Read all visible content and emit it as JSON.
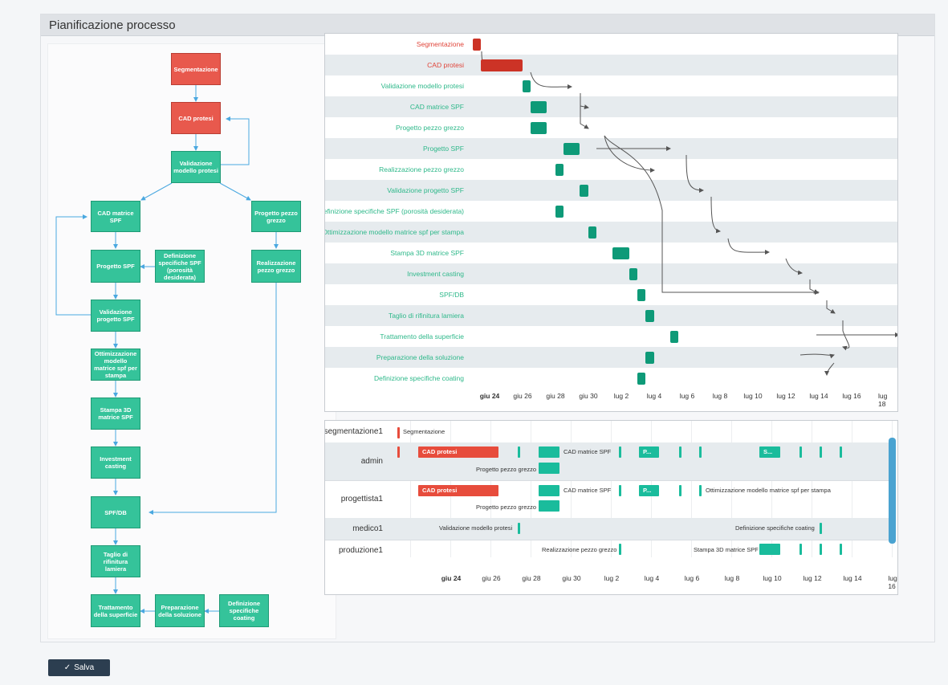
{
  "panel": {
    "title": "Pianificazione processo"
  },
  "flowchart": {
    "nodes": [
      {
        "id": "segmentazione",
        "label": "Segmentazione"
      },
      {
        "id": "cad-protesi",
        "label": "CAD protesi"
      },
      {
        "id": "validazione-modello",
        "label": "Validazione modello protesi"
      },
      {
        "id": "cad-matrice",
        "label": "CAD matrice SPF"
      },
      {
        "id": "progetto-pezzo-grezzo",
        "label": "Progetto pezzo grezzo"
      },
      {
        "id": "progetto-spf",
        "label": "Progetto SPF"
      },
      {
        "id": "definizione-specifiche-spf",
        "label": "Definizione specifiche SPF (porosità desiderata)"
      },
      {
        "id": "realizzazione-pezzo",
        "label": "Realizzazione pezzo grezzo"
      },
      {
        "id": "validazione-progetto",
        "label": "Validazione progetto SPF"
      },
      {
        "id": "ottimizzazione",
        "label": "Ottimizzazione modello matrice spf per stampa"
      },
      {
        "id": "stampa-3d",
        "label": "Stampa 3D matrice SPF"
      },
      {
        "id": "investment-casting",
        "label": "Investment casting"
      },
      {
        "id": "spf-db",
        "label": "SPF/DB"
      },
      {
        "id": "taglio",
        "label": "Taglio di rifinitura lamiera"
      },
      {
        "id": "trattamento",
        "label": "Trattamento della superficie"
      },
      {
        "id": "preparazione",
        "label": "Preparazione della soluzione"
      },
      {
        "id": "definizione-coating",
        "label": "Definizione specifiche coating"
      }
    ]
  },
  "gantt": {
    "tasks": [
      {
        "name": "Segmentazione",
        "start": "2024-06-24",
        "end": "2024-06-25",
        "status": "red"
      },
      {
        "name": "CAD protesi",
        "start": "2024-06-25",
        "end": "2024-06-30",
        "status": "red"
      },
      {
        "name": "Validazione modello protesi",
        "start": "2024-06-30",
        "end": "2024-07-01",
        "status": "green"
      },
      {
        "name": "CAD matrice SPF",
        "start": "2024-07-01",
        "end": "2024-07-03",
        "status": "green"
      },
      {
        "name": "Progetto pezzo grezzo",
        "start": "2024-07-01",
        "end": "2024-07-03",
        "status": "green"
      },
      {
        "name": "Progetto SPF",
        "start": "2024-07-05",
        "end": "2024-07-07",
        "status": "green"
      },
      {
        "name": "Realizzazione pezzo grezzo",
        "start": "2024-07-04",
        "end": "2024-07-05",
        "status": "green"
      },
      {
        "name": "Validazione progetto SPF",
        "start": "2024-07-07",
        "end": "2024-07-08",
        "status": "green"
      },
      {
        "name": "Definizione specifiche SPF (porosità desiderata)",
        "start": "2024-07-04",
        "end": "2024-07-05",
        "status": "green"
      },
      {
        "name": "Ottimizzazione modello matrice spf per stampa",
        "start": "2024-07-08",
        "end": "2024-07-09",
        "status": "green"
      },
      {
        "name": "Stampa 3D matrice SPF",
        "start": "2024-07-11",
        "end": "2024-07-13",
        "status": "green"
      },
      {
        "name": "Investment casting",
        "start": "2024-07-13",
        "end": "2024-07-14",
        "status": "green"
      },
      {
        "name": "SPF/DB",
        "start": "2024-07-14",
        "end": "2024-07-15",
        "status": "green"
      },
      {
        "name": "Taglio di rifinitura lamiera",
        "start": "2024-07-15",
        "end": "2024-07-16",
        "status": "green"
      },
      {
        "name": "Trattamento della superficie",
        "start": "2024-07-18",
        "end": "2024-07-19",
        "status": "green"
      },
      {
        "name": "Preparazione della soluzione",
        "start": "2024-07-15",
        "end": "2024-07-16",
        "status": "green"
      },
      {
        "name": "Definizione specifiche coating",
        "start": "2024-07-14",
        "end": "2024-07-15",
        "status": "green"
      }
    ],
    "ticks": [
      "giu 24",
      "giu 26",
      "giu 28",
      "giu 30",
      "lug 2",
      "lug 4",
      "lug 6",
      "lug 8",
      "lug 10",
      "lug 12",
      "lug 14",
      "lug 16",
      "lug 18"
    ]
  },
  "resources": {
    "ticks": [
      "giu 24",
      "giu 26",
      "giu 28",
      "giu 30",
      "lug 2",
      "lug 4",
      "lug 6",
      "lug 8",
      "lug 10",
      "lug 12",
      "lug 14",
      "lug 16",
      "lug 18"
    ],
    "rows": [
      {
        "name": "segmentazione1"
      },
      {
        "name": "admin"
      },
      {
        "name": "progettista1"
      },
      {
        "name": "medico1"
      },
      {
        "name": "produzione1"
      }
    ],
    "labels": {
      "segmentazione": "Segmentazione",
      "cad_protesi": "CAD protesi",
      "cad_matrice": "CAD matrice SPF",
      "progetto_pezzo": "Progetto pezzo grezzo",
      "p_short": "P...",
      "s_short": "S...",
      "ottimizzazione": "Ottimizzazione modello matrice spf per stampa",
      "validazione_modello": "Validazione modello protesi",
      "definizione_coating": "Definizione specifiche coating",
      "realizzazione": "Realizzazione pezzo grezzo",
      "stampa": "Stampa 3D matrice SPF"
    }
  },
  "colors": {
    "red": "#cc3326",
    "green": "#0e9a78",
    "res_red": "#e74c3c",
    "res_green": "#1abc9c",
    "label_red": "#e0453a",
    "label_green": "#2eb88a"
  },
  "footer": {
    "save_label": "Salva"
  }
}
